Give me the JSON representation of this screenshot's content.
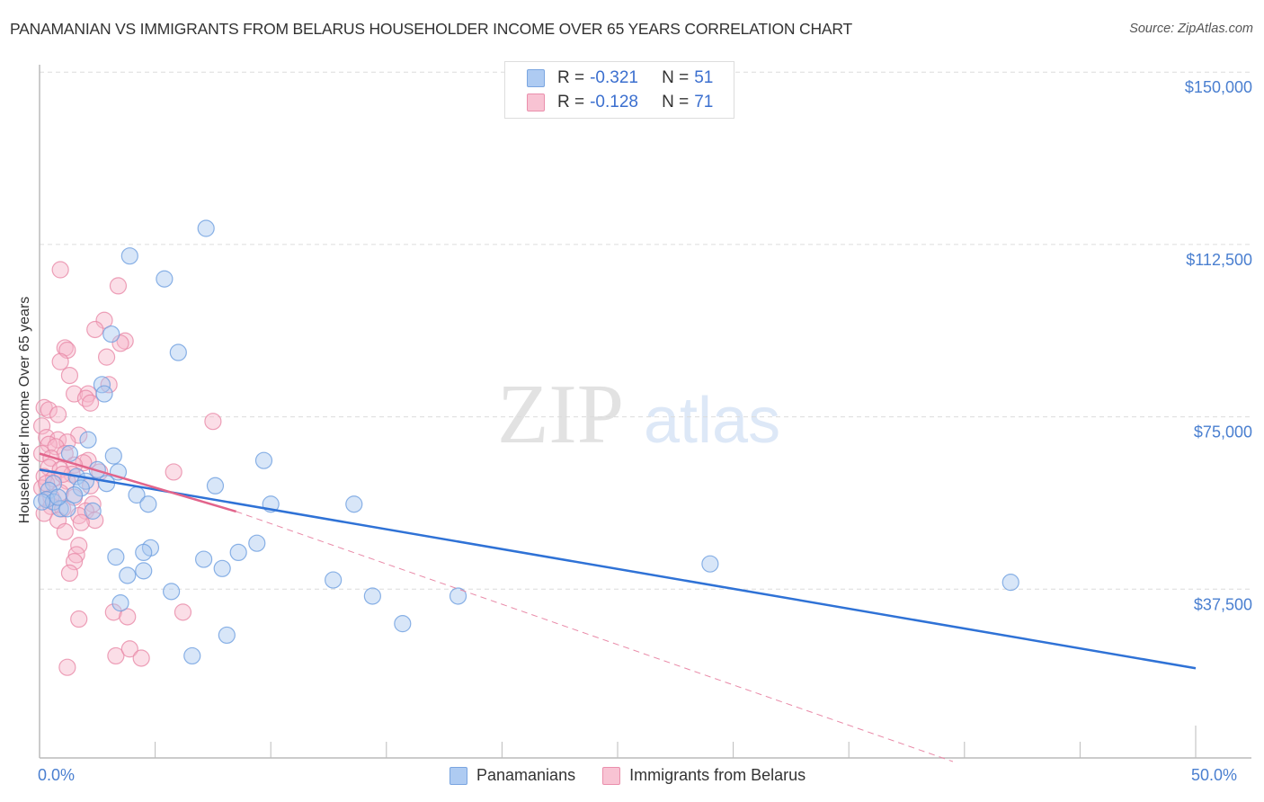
{
  "header": {
    "title": "PANAMANIAN VS IMMIGRANTS FROM BELARUS HOUSEHOLDER INCOME OVER 65 YEARS CORRELATION CHART",
    "source": "Source: ZipAtlas.com"
  },
  "watermark": {
    "zip": "ZIP",
    "atlas": "atlas"
  },
  "legend_top": {
    "rows": [
      {
        "r_label": "R =",
        "r_value": "-0.321",
        "n_label": "N =",
        "n_value": "51",
        "color": "#aecbf2",
        "border": "#7aa5e0"
      },
      {
        "r_label": "R =",
        "r_value": "-0.128",
        "n_label": "N =",
        "n_value": "71",
        "color": "#f8c3d3",
        "border": "#ea8fac"
      }
    ]
  },
  "legend_bottom": {
    "items": [
      {
        "label": "Panamanians",
        "color": "#aecbf2",
        "border": "#7aa5e0"
      },
      {
        "label": "Immigrants from Belarus",
        "color": "#f8c3d3",
        "border": "#ea8fac"
      }
    ]
  },
  "axes": {
    "ylabel": "Householder Income Over 65 years",
    "x_min_label": "0.0%",
    "x_max_label": "50.0%",
    "y_ticks": [
      "$150,000",
      "$112,500",
      "$75,000",
      "$37,500"
    ]
  },
  "chart_data": {
    "type": "scatter",
    "title": "PANAMANIAN VS IMMIGRANTS FROM BELARUS HOUSEHOLDER INCOME OVER 65 YEARS CORRELATION CHART",
    "xlabel": "",
    "ylabel": "Householder Income Over 65 years",
    "xlim": [
      0,
      50
    ],
    "ylim": [
      0,
      153000
    ],
    "x_tick_labels": [
      "0.0%",
      "50.0%"
    ],
    "y_tick_values": [
      37500,
      75000,
      112500,
      150000
    ],
    "y_tick_labels": [
      "$37,500",
      "$75,000",
      "$112,500",
      "$150,000"
    ],
    "grid": true,
    "legend_position": "top-center and bottom",
    "series": [
      {
        "name": "Panamanians",
        "color": "#6f9fe0",
        "R": -0.321,
        "N": 51,
        "trend": {
          "x": [
            0,
            50
          ],
          "y": [
            63500,
            20300
          ]
        },
        "points": [
          [
            7.2,
            116000
          ],
          [
            3.9,
            110000
          ],
          [
            5.4,
            105000
          ],
          [
            6.0,
            89000
          ],
          [
            3.1,
            93000
          ],
          [
            2.7,
            82000
          ],
          [
            2.8,
            80000
          ],
          [
            2.1,
            70000
          ],
          [
            3.2,
            66500
          ],
          [
            9.7,
            65500
          ],
          [
            1.3,
            67000
          ],
          [
            2.5,
            63500
          ],
          [
            3.4,
            63000
          ],
          [
            1.6,
            62000
          ],
          [
            2.0,
            61000
          ],
          [
            0.6,
            60500
          ],
          [
            2.9,
            60500
          ],
          [
            7.6,
            60000
          ],
          [
            1.8,
            59500
          ],
          [
            0.4,
            59000
          ],
          [
            4.2,
            58000
          ],
          [
            0.3,
            57000
          ],
          [
            0.6,
            56500
          ],
          [
            4.7,
            56000
          ],
          [
            10.0,
            56000
          ],
          [
            13.6,
            56000
          ],
          [
            0.9,
            55000
          ],
          [
            1.2,
            55000
          ],
          [
            2.3,
            54500
          ],
          [
            0.1,
            56500
          ],
          [
            4.8,
            46500
          ],
          [
            4.5,
            45500
          ],
          [
            9.4,
            47500
          ],
          [
            8.6,
            45500
          ],
          [
            3.3,
            44500
          ],
          [
            7.1,
            44000
          ],
          [
            4.5,
            41500
          ],
          [
            7.9,
            42000
          ],
          [
            3.8,
            40500
          ],
          [
            12.7,
            39500
          ],
          [
            29.0,
            43000
          ],
          [
            42.0,
            39000
          ],
          [
            14.4,
            36000
          ],
          [
            18.1,
            36000
          ],
          [
            5.7,
            37000
          ],
          [
            3.5,
            34500
          ],
          [
            15.7,
            30000
          ],
          [
            8.1,
            27500
          ],
          [
            6.6,
            23000
          ],
          [
            0.8,
            57500
          ],
          [
            1.5,
            58000
          ]
        ]
      },
      {
        "name": "Immigrants from Belarus",
        "color": "#ef8fae",
        "R": -0.128,
        "N": 71,
        "trend_solid": {
          "x": [
            0,
            8.5
          ],
          "y": [
            67000,
            54400
          ]
        },
        "trend_dashed": {
          "x": [
            8.5,
            39.5
          ],
          "y": [
            54400,
            0
          ]
        },
        "points": [
          [
            0.9,
            107000
          ],
          [
            3.4,
            103500
          ],
          [
            2.8,
            96000
          ],
          [
            2.4,
            94000
          ],
          [
            3.7,
            91500
          ],
          [
            3.5,
            91000
          ],
          [
            1.1,
            90000
          ],
          [
            1.2,
            89500
          ],
          [
            0.9,
            87000
          ],
          [
            2.9,
            88000
          ],
          [
            1.3,
            84000
          ],
          [
            3.0,
            82000
          ],
          [
            1.5,
            80000
          ],
          [
            2.1,
            80000
          ],
          [
            2.0,
            79000
          ],
          [
            2.2,
            78000
          ],
          [
            0.2,
            77000
          ],
          [
            0.4,
            76500
          ],
          [
            0.8,
            75500
          ],
          [
            7.5,
            74000
          ],
          [
            0.1,
            73000
          ],
          [
            1.7,
            71000
          ],
          [
            0.3,
            70500
          ],
          [
            0.8,
            70000
          ],
          [
            1.2,
            69500
          ],
          [
            0.4,
            69000
          ],
          [
            0.7,
            68500
          ],
          [
            0.1,
            67000
          ],
          [
            1.1,
            67000
          ],
          [
            0.5,
            66000
          ],
          [
            2.1,
            65500
          ],
          [
            1.9,
            65000
          ],
          [
            1.5,
            64500
          ],
          [
            0.4,
            64000
          ],
          [
            0.9,
            63500
          ],
          [
            5.8,
            63000
          ],
          [
            0.2,
            62000
          ],
          [
            1.4,
            62500
          ],
          [
            0.6,
            61500
          ],
          [
            1.2,
            61000
          ],
          [
            2.2,
            60000
          ],
          [
            0.1,
            59500
          ],
          [
            0.9,
            58500
          ],
          [
            1.5,
            57500
          ],
          [
            0.3,
            57000
          ],
          [
            2.3,
            56000
          ],
          [
            0.5,
            55500
          ],
          [
            1.0,
            55000
          ],
          [
            2.0,
            54500
          ],
          [
            0.2,
            54000
          ],
          [
            1.7,
            53500
          ],
          [
            0.8,
            52500
          ],
          [
            2.4,
            52500
          ],
          [
            1.8,
            52000
          ],
          [
            1.1,
            50000
          ],
          [
            1.7,
            47000
          ],
          [
            1.6,
            45000
          ],
          [
            1.5,
            43500
          ],
          [
            1.3,
            41000
          ],
          [
            6.2,
            32500
          ],
          [
            3.2,
            32500
          ],
          [
            3.8,
            31500
          ],
          [
            1.7,
            31000
          ],
          [
            3.3,
            23000
          ],
          [
            3.9,
            24500
          ],
          [
            4.4,
            22500
          ],
          [
            1.2,
            20500
          ],
          [
            0.5,
            57500
          ],
          [
            2.6,
            63000
          ],
          [
            1.0,
            62500
          ],
          [
            0.3,
            60500
          ]
        ]
      }
    ]
  }
}
